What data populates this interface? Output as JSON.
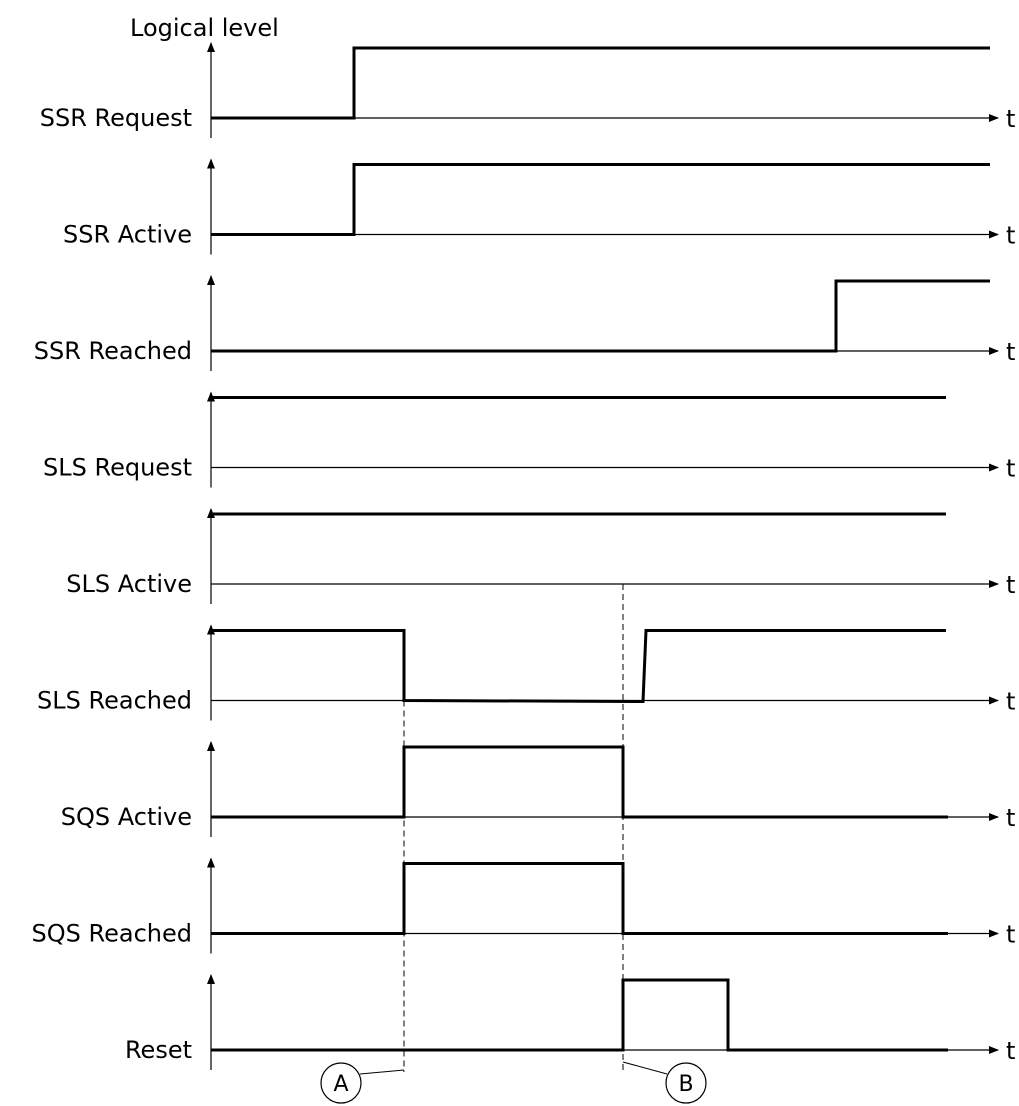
{
  "title": "Logical level",
  "time_label": "t",
  "signals": [
    {
      "name": "SSR Request",
      "levels": [
        [
          0,
          0
        ],
        [
          1,
          1
        ]
      ]
    },
    {
      "name": "SSR Active",
      "levels": [
        [
          0,
          0
        ],
        [
          1,
          1
        ]
      ]
    },
    {
      "name": "SSR Reached",
      "levels": [
        [
          0,
          0
        ],
        [
          4,
          1
        ]
      ]
    },
    {
      "name": "SLS Request",
      "levels": [
        [
          0,
          1
        ]
      ]
    },
    {
      "name": "SLS Active",
      "levels": [
        [
          0,
          1
        ]
      ]
    },
    {
      "name": "SLS Reached",
      "levels": [
        [
          0,
          1
        ],
        [
          2,
          0
        ],
        [
          3,
          1
        ]
      ]
    },
    {
      "name": "SQS Active",
      "levels": [
        [
          0,
          0
        ],
        [
          2,
          1
        ],
        [
          3,
          0
        ]
      ]
    },
    {
      "name": "SQS Reached",
      "levels": [
        [
          0,
          0
        ],
        [
          2,
          1
        ],
        [
          3,
          0
        ]
      ]
    },
    {
      "name": "Reset",
      "levels": [
        [
          0,
          0
        ],
        [
          3,
          1
        ],
        [
          3.5,
          0
        ]
      ]
    }
  ],
  "markers": [
    {
      "label": "A"
    },
    {
      "label": "B"
    }
  ]
}
